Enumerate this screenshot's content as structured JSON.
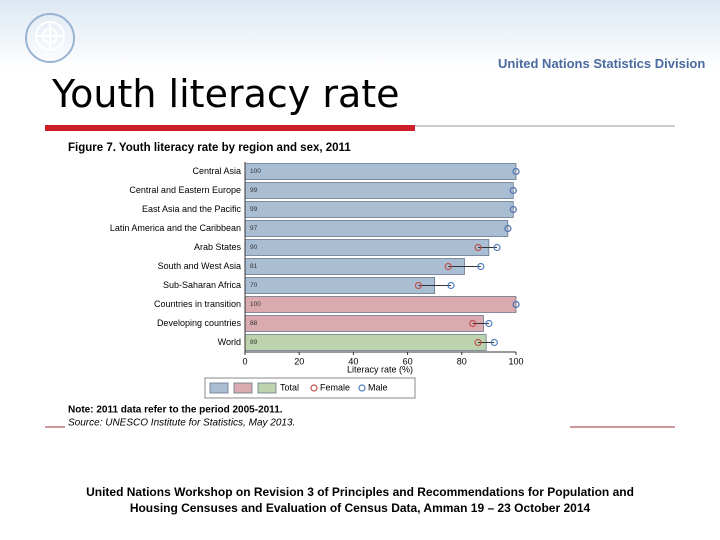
{
  "slide": {
    "title": "Youth literacy rate",
    "organization": "United Nations Statistics Division",
    "footer": [
      "United Nations Workshop on  Revision 3 of Principles and Recommendations for Population and",
      "Housing Censuses and Evaluation of Census Data, Amman 19 – 23 October 2014"
    ]
  },
  "chart_data": {
    "type": "hbar-dot",
    "title": "Figure 7. Youth literacy rate by region and sex, 2011",
    "x_label": "Literacy rate (%)",
    "categories": [
      "Central Asia",
      "Central and Eastern Europe",
      "East Asia and the Pacific",
      "Latin America and the Caribbean",
      "Arab States",
      "South and West Asia",
      "Sub-Saharan Africa",
      "Countries in transition",
      "Developing countries",
      "World"
    ],
    "series": [
      {
        "name": "Total",
        "colors": [
          "#a9bdd3",
          "#a9bdd3",
          "#a9bdd3",
          "#a9bdd3",
          "#a9bdd3",
          "#a9bdd3",
          "#a9bdd3",
          "#d9aab0",
          "#d9aab0",
          "#bcd3ad"
        ],
        "values": [
          100,
          99,
          99,
          97,
          90,
          81,
          70,
          100,
          88,
          89
        ]
      },
      {
        "name": "Female",
        "color": "#c0504d",
        "values": [
          100,
          99,
          99,
          97,
          86,
          75,
          64,
          100,
          84,
          86
        ]
      },
      {
        "name": "Male",
        "color": "#4f7fbf",
        "values": [
          100,
          99,
          99,
          97,
          93,
          87,
          76,
          100,
          90,
          92
        ]
      }
    ],
    "xlim": [
      0,
      100
    ],
    "xticks": [
      0,
      20,
      40,
      60,
      80,
      100
    ],
    "note": "Note: 2011 data refer to the period 2005-2011.",
    "source": "Source: UNESCO Institute for Statistics, May 2013."
  }
}
